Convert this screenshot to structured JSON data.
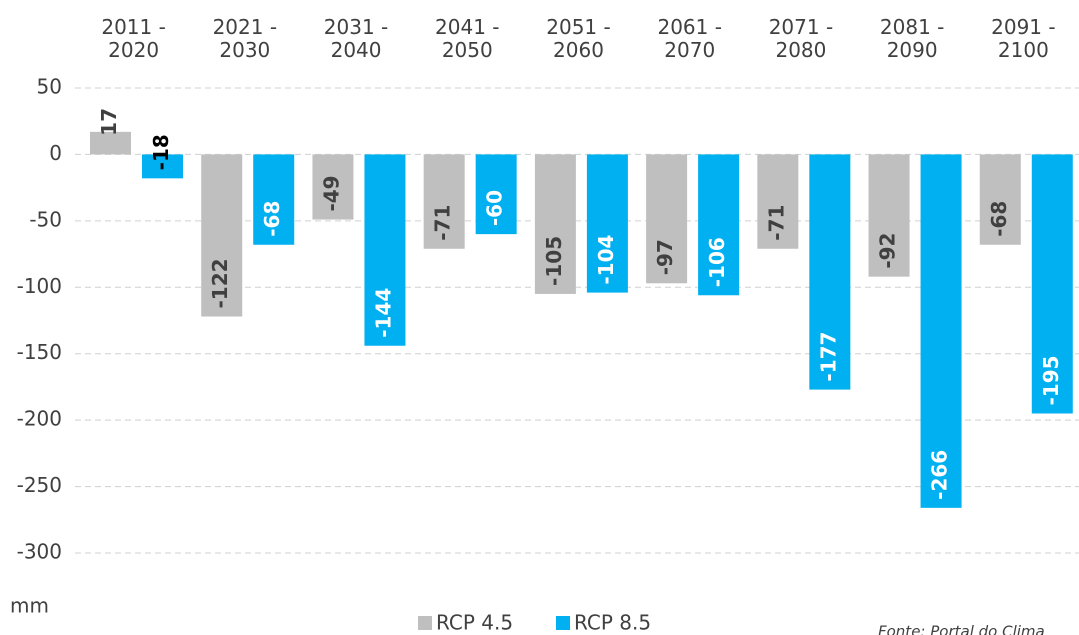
{
  "chart_data": {
    "type": "bar",
    "categories": [
      "2011 - 2020",
      "2021 - 2030",
      "2031 - 2040",
      "2041 - 2050",
      "2051 - 2060",
      "2061 - 2070",
      "2071 - 2080",
      "2081 - 2090",
      "2091 - 2100"
    ],
    "series": [
      {
        "name": "RCP 4.5",
        "color": "#bfbfbf",
        "values": [
          17,
          -122,
          -49,
          -71,
          -105,
          -97,
          -71,
          -92,
          -68
        ]
      },
      {
        "name": "RCP 8.5",
        "color": "#00b0f0",
        "values": [
          -18,
          -68,
          -144,
          -60,
          -104,
          -106,
          -177,
          -266,
          -195
        ]
      }
    ],
    "ylabel": "mm",
    "source": "Fonte: Portal do Clima",
    "ylim": [
      -300,
      50
    ],
    "yticks": [
      50,
      0,
      -50,
      -100,
      -150,
      -200,
      -250,
      -300
    ],
    "grid": true,
    "legend": "bottom"
  }
}
